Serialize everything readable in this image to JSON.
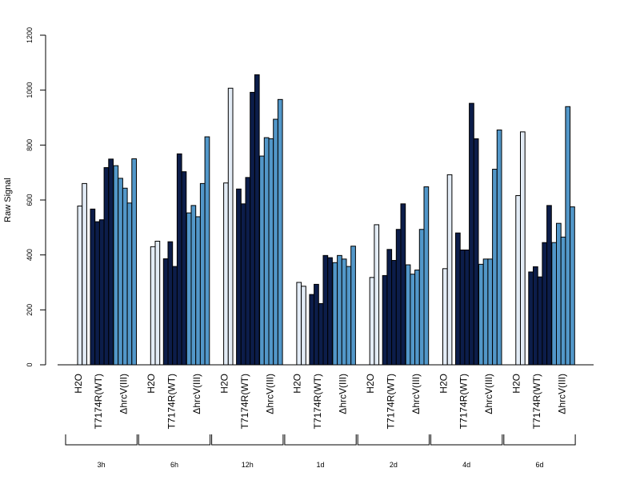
{
  "chart_data": {
    "type": "bar",
    "ylabel": "Raw Signal",
    "ylim": [
      0,
      1200
    ],
    "yticks": [
      0,
      200,
      400,
      600,
      800,
      1000,
      1200
    ],
    "treatment_labels": [
      "H2O",
      "T7174R(WT)",
      "ΔhrcV(III)"
    ],
    "groups": [
      {
        "time": "3h",
        "bars": [
          {
            "treatment": "H2O",
            "values": [
              578,
              660
            ]
          },
          {
            "treatment": "T7174R(WT)",
            "values": [
              567,
              521,
              528,
              718,
              749
            ]
          },
          {
            "treatment": "ΔhrcV(III)",
            "values": [
              725,
              679,
              643,
              589,
              750
            ]
          }
        ]
      },
      {
        "time": "6h",
        "bars": [
          {
            "treatment": "H2O",
            "values": [
              430,
              450
            ]
          },
          {
            "treatment": "T7174R(WT)",
            "values": [
              386,
              448,
              358,
              768,
              703
            ]
          },
          {
            "treatment": "ΔhrcV(III)",
            "values": [
              553,
              580,
              539,
              660,
              830
            ]
          }
        ]
      },
      {
        "time": "12h",
        "bars": [
          {
            "treatment": "H2O",
            "values": [
              662,
              1007
            ]
          },
          {
            "treatment": "T7174R(WT)",
            "values": [
              640,
              586,
              682,
              992,
              1056
            ]
          },
          {
            "treatment": "ΔhrcV(III)",
            "values": [
              760,
              827,
              823,
              894,
              966
            ]
          }
        ]
      },
      {
        "time": "1d",
        "bars": [
          {
            "treatment": "H2O",
            "values": [
              300,
              286
            ]
          },
          {
            "treatment": "T7174R(WT)",
            "values": [
              256,
              293,
              223,
              398,
              390
            ]
          },
          {
            "treatment": "ΔhrcV(III)",
            "values": [
              372,
              398,
              385,
              358,
              432
            ]
          }
        ]
      },
      {
        "time": "2d",
        "bars": [
          {
            "treatment": "H2O",
            "values": [
              318,
              510
            ]
          },
          {
            "treatment": "T7174R(WT)",
            "values": [
              325,
              420,
              380,
              493,
              586
            ]
          },
          {
            "treatment": "ΔhrcV(III)",
            "values": [
              364,
              330,
              345,
              493,
              648
            ]
          }
        ]
      },
      {
        "time": "4d",
        "bars": [
          {
            "treatment": "H2O",
            "values": [
              350,
              692
            ]
          },
          {
            "treatment": "T7174R(WT)",
            "values": [
              480,
              418,
              418,
              952,
              823
            ]
          },
          {
            "treatment": "ΔhrcV(III)",
            "values": [
              366,
              385,
              385,
              712,
              855
            ]
          }
        ]
      },
      {
        "time": "6d",
        "bars": [
          {
            "treatment": "H2O",
            "values": [
              616,
              848
            ]
          },
          {
            "treatment": "T7174R(WT)",
            "values": [
              338,
              357,
              320,
              445,
              580
            ]
          },
          {
            "treatment": "ΔhrcV(III)",
            "values": [
              445,
              515,
              465,
              940,
              575
            ]
          }
        ]
      }
    ],
    "colors": {
      "H2O": "#e3ecf6",
      "T7174R(WT)": "#0c1d4a",
      "ΔhrcV(III)": "#5297c9"
    },
    "grid": false,
    "legend": "none"
  }
}
